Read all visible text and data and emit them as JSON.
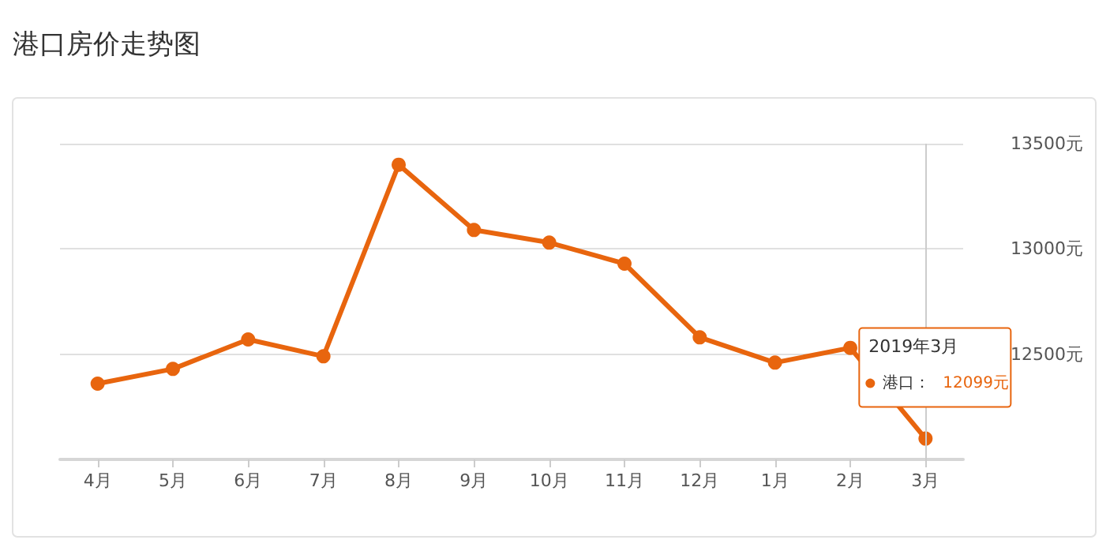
{
  "chart_data": {
    "type": "line",
    "title": "港口房价走势图",
    "categories": [
      "4月",
      "5月",
      "6月",
      "7月",
      "8月",
      "9月",
      "10月",
      "11月",
      "12月",
      "1月",
      "2月",
      "3月"
    ],
    "series": [
      {
        "name": "港口：",
        "color": "#e8650e",
        "values": [
          12360,
          12430,
          12570,
          12490,
          13400,
          13090,
          13030,
          12930,
          12580,
          12460,
          12530,
          12099
        ],
        "value_labels": [
          null,
          null,
          null,
          null,
          null,
          null,
          null,
          null,
          null,
          null,
          null,
          "12099元"
        ]
      }
    ],
    "ylim": [
      12000,
      13500
    ],
    "yticks": [
      {
        "value": 12500,
        "label": "12500元"
      },
      {
        "value": 13000,
        "label": "13000元"
      },
      {
        "value": 13500,
        "label": "13500元"
      }
    ],
    "grid": "y",
    "marker": "circle",
    "line_style": "solid",
    "legend": "right",
    "ref_lines": [
      {
        "axis": "x",
        "value": "3月",
        "label": null,
        "color": "#cccccc"
      }
    ],
    "annotations": [
      "2019年3月"
    ]
  }
}
